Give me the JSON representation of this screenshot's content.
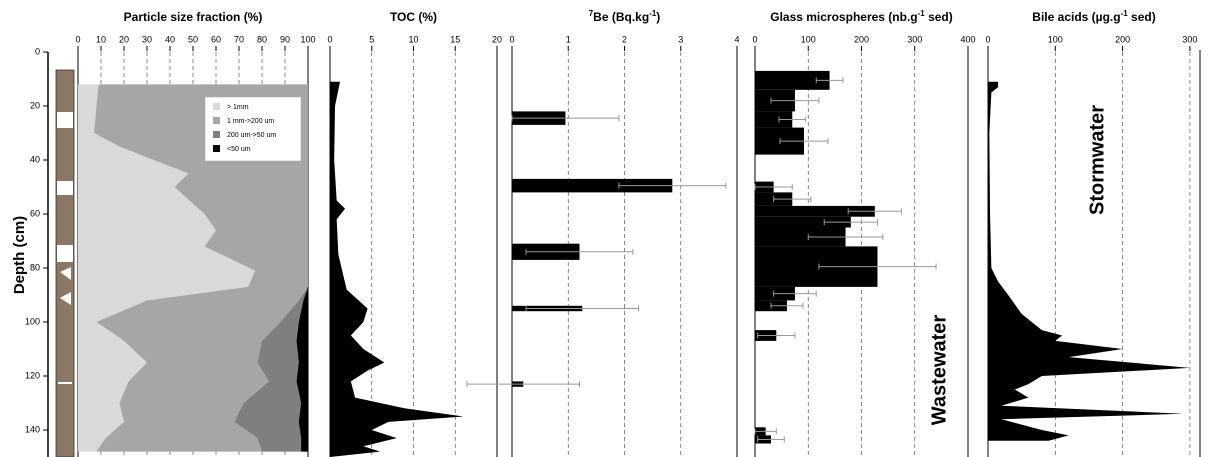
{
  "chart_data": [
    {
      "type": "stacked-area",
      "title": "Particle size fraction (%)",
      "ylabel": "Depth (cm)",
      "ylim": [
        0,
        150
      ],
      "yticks": [
        0,
        20,
        40,
        60,
        80,
        100,
        120,
        140
      ],
      "xlim": [
        0,
        100
      ],
      "xticks": [
        0,
        10,
        20,
        30,
        40,
        50,
        60,
        70,
        80,
        90,
        100
      ],
      "grid": true,
      "depths": [
        12,
        20,
        30,
        35,
        45,
        50,
        60,
        66,
        72,
        81,
        87,
        92,
        100,
        107,
        115,
        122,
        130,
        137,
        143,
        148
      ],
      "series": [
        {
          "name": "> 1mm",
          "color": "#d9d9d9",
          "values": [
            9,
            8,
            7,
            18,
            48,
            42,
            55,
            60,
            55,
            77,
            74,
            30,
            8,
            20,
            30,
            22,
            18,
            20,
            12,
            8
          ]
        },
        {
          "name": "1 mm->200 um",
          "color": "#a6a6a6",
          "values": [
            91,
            92,
            93,
            82,
            52,
            58,
            45,
            40,
            45,
            23,
            26,
            66,
            80,
            60,
            48,
            61,
            54,
            48,
            66,
            72
          ]
        },
        {
          "name": "200 um->50 um",
          "color": "#7f7f7f",
          "values": [
            0,
            0,
            0,
            0,
            0,
            0,
            0,
            0,
            0,
            0,
            0,
            2,
            8,
            15,
            18,
            12,
            25,
            28,
            19,
            17
          ]
        },
        {
          "name": "<50 um",
          "color": "#000000",
          "values": [
            0,
            0,
            0,
            0,
            0,
            0,
            0,
            0,
            0,
            0,
            0,
            2,
            4,
            5,
            4,
            5,
            3,
            4,
            3,
            3
          ]
        }
      ]
    },
    {
      "type": "area",
      "title": "TOC (%)",
      "xlim": [
        0,
        20
      ],
      "xticks": [
        0,
        5,
        10,
        15,
        20
      ],
      "grid": true,
      "color": "#000000",
      "depths": [
        11,
        14,
        20,
        40,
        55,
        58,
        62,
        75,
        88,
        95,
        100,
        105,
        110,
        115,
        118,
        122,
        128,
        132,
        135,
        137,
        140,
        143,
        146,
        148,
        150
      ],
      "values": [
        1.2,
        1.0,
        0.6,
        0.5,
        0.8,
        1.8,
        0.8,
        1.0,
        2.0,
        4.5,
        4.0,
        2.5,
        4.0,
        6.5,
        4.5,
        2.5,
        3.0,
        9.0,
        16,
        7,
        5,
        8,
        4,
        6,
        0
      ]
    },
    {
      "type": "bar",
      "title_parts": [
        {
          "text": "7",
          "sup": true
        },
        {
          "text": "Be (Bq.kg"
        },
        {
          "text": "-1",
          "sup": true
        },
        {
          "text": ")"
        }
      ],
      "xlim": [
        0,
        4
      ],
      "xticks": [
        0,
        1,
        2,
        3,
        4
      ],
      "grid": true,
      "color": "#000000",
      "error_color": "#999999",
      "depth_ranges": [
        [
          22,
          27
        ],
        [
          47,
          52
        ],
        [
          71,
          77
        ],
        [
          94,
          96
        ],
        [
          122,
          124
        ]
      ],
      "values": [
        0.95,
        2.85,
        1.2,
        1.25,
        0.2
      ],
      "errors": [
        0.95,
        0.95,
        0.95,
        1.0,
        1.0
      ]
    },
    {
      "type": "bar",
      "title_parts": [
        {
          "text": "Glass microspheres (nb.g"
        },
        {
          "text": "-1",
          "sup": true
        },
        {
          "text": " sed)"
        }
      ],
      "xlim": [
        0,
        400
      ],
      "xticks": [
        0,
        100,
        200,
        300,
        400
      ],
      "grid": true,
      "color": "#000000",
      "error_color": "#999999",
      "annotation": "Wastewater",
      "depth_ranges": [
        [
          7,
          14
        ],
        [
          14,
          22
        ],
        [
          22,
          28
        ],
        [
          28,
          38
        ],
        [
          48,
          52
        ],
        [
          52,
          57
        ],
        [
          57,
          61
        ],
        [
          61,
          65
        ],
        [
          65,
          72
        ],
        [
          72,
          87
        ],
        [
          87,
          92
        ],
        [
          92,
          96
        ],
        [
          103,
          107
        ],
        [
          139,
          142
        ],
        [
          142,
          145
        ]
      ],
      "values": [
        140,
        75,
        70,
        92,
        35,
        70,
        225,
        180,
        170,
        230,
        75,
        60,
        40,
        20,
        30
      ],
      "errors": [
        25,
        45,
        25,
        45,
        35,
        35,
        50,
        50,
        70,
        110,
        40,
        30,
        35,
        20,
        25
      ]
    },
    {
      "type": "area",
      "title_parts": [
        {
          "text": "Bile acids (µg.g"
        },
        {
          "text": "-1",
          "sup": true
        },
        {
          "text": " sed)"
        }
      ],
      "xlim": [
        0,
        315
      ],
      "xticks": [
        0,
        100,
        200,
        300
      ],
      "grid": true,
      "color": "#000000",
      "annotation": "Stormwater",
      "depths": [
        11,
        13,
        15,
        30,
        60,
        80,
        85,
        90,
        97,
        103,
        105,
        107,
        110,
        113,
        117,
        120,
        123,
        125,
        128,
        131,
        134,
        136,
        140,
        142,
        144
      ],
      "values": [
        15,
        15,
        5,
        2,
        3,
        5,
        15,
        30,
        50,
        80,
        110,
        100,
        200,
        120,
        300,
        80,
        60,
        40,
        60,
        20,
        290,
        20,
        80,
        120,
        90
      ]
    }
  ]
}
